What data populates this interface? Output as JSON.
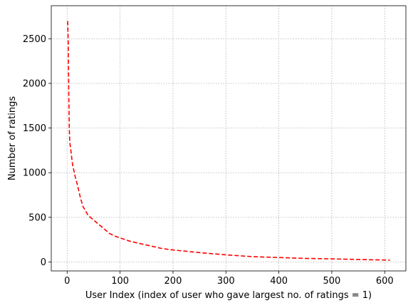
{
  "chart_data": {
    "type": "line",
    "title": "",
    "xlabel": "User Index (index of user who gave largest no. of ratings = 1)",
    "ylabel": "Number of ratings",
    "xlim": [
      -30,
      640
    ],
    "ylim": [
      -100,
      2870
    ],
    "xticks": [
      0,
      100,
      200,
      300,
      400,
      500,
      600
    ],
    "yticks": [
      0,
      500,
      1000,
      1500,
      2000,
      2500
    ],
    "grid": true,
    "legend": "none",
    "series": [
      {
        "color": "#ff0000",
        "style": "dashed",
        "x": [
          1,
          2,
          3,
          4,
          5,
          7,
          10,
          15,
          20,
          25,
          30,
          40,
          50,
          60,
          70,
          80,
          90,
          100,
          120,
          150,
          180,
          200,
          250,
          300,
          350,
          400,
          450,
          500,
          550,
          600,
          610
        ],
        "y": [
          2698,
          2478,
          1930,
          1500,
          1340,
          1250,
          1100,
          960,
          850,
          720,
          620,
          520,
          470,
          420,
          370,
          320,
          290,
          270,
          230,
          190,
          150,
          135,
          105,
          80,
          60,
          50,
          40,
          35,
          28,
          22,
          20
        ]
      }
    ]
  }
}
